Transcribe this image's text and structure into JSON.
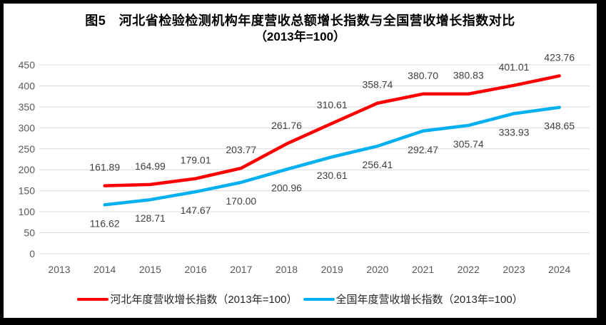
{
  "chart_data": {
    "type": "line",
    "title": "图5　河北省检验检测机构年度营收总额增长指数与全国营收增长指数对比",
    "subtitle": "（2013年=100）",
    "categories": [
      "2013",
      "2014",
      "2015",
      "2016",
      "2017",
      "2018",
      "2019",
      "2020",
      "2021",
      "2022",
      "2023",
      "2024"
    ],
    "y_axis": {
      "min": 0,
      "max": 450,
      "step": 50,
      "tick_labels": [
        "0",
        "50",
        "100",
        "150",
        "200",
        "250",
        "300",
        "350",
        "400",
        "450"
      ]
    },
    "grid": "horizontal gridlines on",
    "legend_position": "bottom",
    "series": [
      {
        "name": "河北年度营收增长指数（2013年=100）",
        "color": "#FF0000",
        "first_category": "2014",
        "label_position": "above",
        "values": [
          161.89,
          164.99,
          179.01,
          203.77,
          261.76,
          310.61,
          358.74,
          380.7,
          380.83,
          401.01,
          423.76
        ],
        "labels": [
          "161.89",
          "164.99",
          "179.01",
          "203.77",
          "261.76",
          "310.61",
          "358.74",
          "380.70",
          "380.83",
          "401.01",
          "423.76"
        ]
      },
      {
        "name": "全国年度营收增长指数（2013年=100）",
        "color": "#00B0F0",
        "first_category": "2014",
        "label_position": "below",
        "values": [
          116.62,
          128.71,
          147.67,
          170.0,
          200.96,
          230.61,
          256.41,
          292.47,
          305.74,
          333.93,
          348.65
        ],
        "labels": [
          "116.62",
          "128.71",
          "147.67",
          "170.00",
          "200.96",
          "230.61",
          "256.41",
          "292.47",
          "305.74",
          "333.93",
          "348.65"
        ]
      }
    ],
    "colors": {
      "grid": "#D9D9D9",
      "tick_label": "#595959",
      "data_label": "#404040",
      "title": "#000000",
      "frame_border": "#000000",
      "background": "#FFFFFF"
    }
  }
}
